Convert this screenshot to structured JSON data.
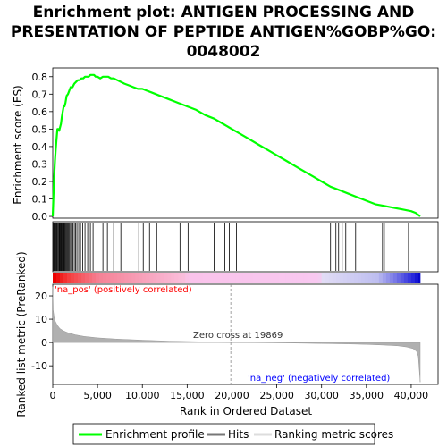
{
  "chart_data": {
    "type": "line",
    "title": [
      "Enrichment plot: ANTIGEN PROCESSING AND",
      "PRESENTATION OF PEPTIDE ANTIGEN%GOBP%GO:",
      "0048002"
    ],
    "xlabel": "Rank in Ordered Dataset",
    "ylabel_top": "Enrichment score (ES)",
    "ylabel_bottom": "Ranked list metric (PreRanked)",
    "xlim": [
      0,
      43000
    ],
    "x_ticks": [
      0,
      5000,
      10000,
      15000,
      20000,
      25000,
      30000,
      35000,
      40000
    ],
    "x_tick_labels": [
      "0",
      "5,000",
      "10,000",
      "15,000",
      "20,000",
      "25,000",
      "30,000",
      "35,000",
      "40,000"
    ],
    "es_ylim": [
      -0.01,
      0.85
    ],
    "es_ticks": [
      0.0,
      0.1,
      0.2,
      0.3,
      0.4,
      0.5,
      0.6,
      0.7,
      0.8
    ],
    "es_tick_labels": [
      "0.0",
      "0.1",
      "0.2",
      "0.3",
      "0.4",
      "0.5",
      "0.6",
      "0.7",
      "0.8"
    ],
    "metric_ylim": [
      -18,
      25
    ],
    "metric_ticks": [
      20,
      10,
      0,
      -10
    ],
    "metric_tick_labels": [
      "20",
      "10",
      "0",
      "-10"
    ],
    "series": [
      {
        "name": "Enrichment profile",
        "color": "#00ff00",
        "x": [
          0,
          80,
          150,
          250,
          330,
          420,
          520,
          620,
          720,
          820,
          920,
          1020,
          1120,
          1220,
          1320,
          1420,
          1550,
          1700,
          1850,
          2000,
          2200,
          2400,
          2600,
          2800,
          3000,
          3200,
          3400,
          3600,
          3800,
          4000,
          4200,
          4400,
          4600,
          4800,
          5000,
          5300,
          5600,
          5900,
          6200,
          6500,
          6800,
          7200,
          7600,
          8000,
          8500,
          9000,
          9500,
          10000,
          10500,
          11000,
          11500,
          12000,
          12500,
          13000,
          13500,
          14000,
          14500,
          15000,
          16000,
          17000,
          18000,
          19000,
          20000,
          21000,
          22000,
          23000,
          24000,
          25000,
          26000,
          27000,
          28000,
          29000,
          30000,
          31000,
          32000,
          33000,
          34000,
          35000,
          36000,
          37000,
          38000,
          39000,
          40000,
          40500,
          41000
        ],
        "y": [
          0.0,
          0.12,
          0.22,
          0.32,
          0.38,
          0.44,
          0.5,
          0.5,
          0.49,
          0.51,
          0.53,
          0.57,
          0.6,
          0.63,
          0.63,
          0.65,
          0.69,
          0.7,
          0.72,
          0.74,
          0.74,
          0.76,
          0.77,
          0.78,
          0.78,
          0.79,
          0.79,
          0.8,
          0.8,
          0.8,
          0.81,
          0.81,
          0.81,
          0.8,
          0.8,
          0.79,
          0.8,
          0.8,
          0.8,
          0.79,
          0.79,
          0.78,
          0.77,
          0.76,
          0.75,
          0.74,
          0.73,
          0.73,
          0.72,
          0.71,
          0.7,
          0.69,
          0.68,
          0.67,
          0.66,
          0.65,
          0.64,
          0.63,
          0.61,
          0.58,
          0.56,
          0.53,
          0.5,
          0.47,
          0.44,
          0.41,
          0.38,
          0.35,
          0.32,
          0.29,
          0.26,
          0.23,
          0.2,
          0.17,
          0.15,
          0.13,
          0.11,
          0.09,
          0.07,
          0.06,
          0.05,
          0.04,
          0.03,
          0.02,
          0.0
        ]
      }
    ],
    "hits": [
      50,
      120,
      200,
      260,
      340,
      420,
      500,
      600,
      700,
      760,
      820,
      900,
      980,
      1050,
      1120,
      1200,
      1280,
      1360,
      1450,
      1540,
      1640,
      1750,
      1860,
      1980,
      2100,
      2250,
      2400,
      2550,
      2700,
      2900,
      3100,
      3350,
      3600,
      3900,
      4200,
      4500,
      5600,
      6100,
      6800,
      7600,
      9600,
      10100,
      10800,
      11600,
      14200,
      15100,
      18000,
      19200,
      19700,
      20500,
      31000,
      31600,
      31900,
      32300,
      32700,
      33800,
      36800,
      37000,
      39700
    ],
    "metric": {
      "x": [
        0,
        50,
        150,
        300,
        500,
        800,
        1200,
        1700,
        2500,
        3500,
        5000,
        7000,
        10000,
        13000,
        16000,
        19000,
        19869,
        22000,
        26000,
        30000,
        33000,
        35000,
        37000,
        38500,
        39500,
        40200,
        40600,
        40800,
        41000
      ],
      "y": [
        24.0,
        14.0,
        11.0,
        9.0,
        7.5,
        6.0,
        5.0,
        4.2,
        3.3,
        2.6,
        2.0,
        1.5,
        1.0,
        0.6,
        0.35,
        0.1,
        0.0,
        -0.05,
        -0.2,
        -0.4,
        -0.6,
        -0.8,
        -1.1,
        -1.4,
        -1.9,
        -2.6,
        -3.8,
        -6.0,
        -17.0
      ]
    },
    "annotations": {
      "na_pos": "'na_pos' (positively correlated)",
      "na_neg": "'na_neg' (negatively correlated)",
      "zero_cross": "Zero cross at 19869"
    },
    "legend": [
      "Enrichment profile",
      "Hits",
      "Ranking metric scores"
    ],
    "legend_position": "bottom",
    "grid": false
  },
  "colors": {
    "es_line": "#00ff00",
    "hit": "#000000",
    "metric_fill": "#b0b0b0",
    "pos_text": "#ff0000",
    "neg_text": "#0000ff"
  }
}
